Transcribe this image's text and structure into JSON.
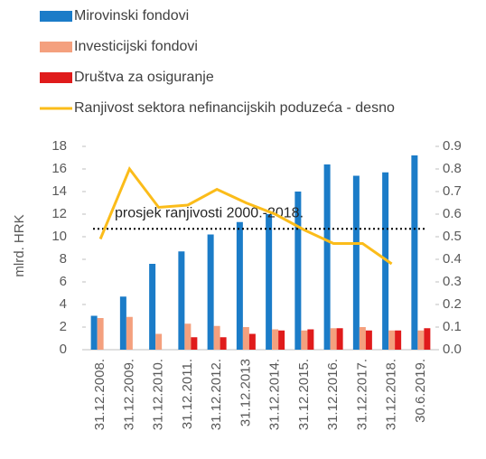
{
  "chart_data": {
    "type": "bar",
    "categories": [
      "31.12.2008.",
      "31.12.2009.",
      "31.12.2010.",
      "31.12.2011.",
      "31.12.2012.",
      "31.12.2013",
      "31.12.2014.",
      "31.12.2015.",
      "31.12.2016.",
      "31.12.2017.",
      "31.12.2018.",
      "30.6.2019."
    ],
    "series": [
      {
        "name": "Mirovinski fondovi",
        "color": "#1b7cc8",
        "values": [
          3.0,
          4.7,
          7.6,
          8.7,
          10.2,
          11.3,
          12.0,
          14.0,
          16.4,
          15.4,
          15.7,
          17.2
        ]
      },
      {
        "name": "Investicijski fondovi",
        "color": "#f4a07e",
        "values": [
          2.8,
          2.9,
          1.4,
          2.3,
          2.1,
          2.0,
          1.8,
          1.7,
          1.9,
          2.0,
          1.7,
          1.7
        ]
      },
      {
        "name": "Društva za osiguranje",
        "color": "#e01b1b",
        "values": [
          null,
          null,
          null,
          1.1,
          1.1,
          1.4,
          1.7,
          1.8,
          1.9,
          1.7,
          1.7,
          1.9
        ]
      },
      {
        "name": "Ranjivost sektora nefinancijskih poduzeća - desno",
        "color": "#fbbc1a",
        "type": "line",
        "axis": "y2",
        "values": [
          0.49,
          0.8,
          0.63,
          0.64,
          0.71,
          0.65,
          0.6,
          0.53,
          0.47,
          0.47,
          0.38,
          null
        ]
      }
    ],
    "annotation": {
      "text": "prosjek ranjivosti 2000.-2018.",
      "value": 0.535,
      "axis": "y2"
    },
    "ylabel": "mlrd. HRK",
    "ylim": [
      0,
      18
    ],
    "yticks": [
      0,
      2,
      4,
      6,
      8,
      10,
      12,
      14,
      16,
      18
    ],
    "y2lim": [
      0,
      0.9
    ],
    "y2ticks": [
      {
        "value": 0,
        "label": "0.0"
      },
      0.1,
      0.2,
      0.3,
      0.4,
      0.5,
      0.6,
      0.7,
      0.8,
      0.9
    ],
    "legend": "top-left"
  }
}
